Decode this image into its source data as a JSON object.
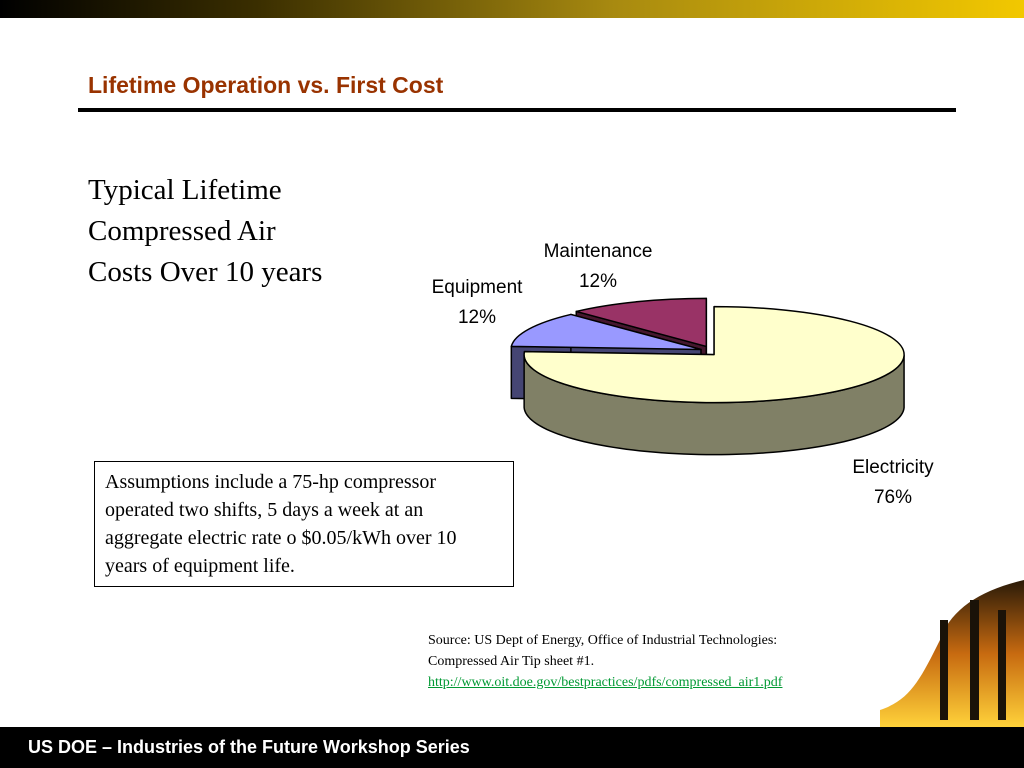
{
  "title": "Lifetime Operation vs. First Cost",
  "subtitle": [
    "Typical Lifetime",
    "Compressed Air",
    "Costs Over 10 years"
  ],
  "chart_data": {
    "type": "pie",
    "categories": [
      "Electricity",
      "Equipment",
      "Maintenance"
    ],
    "values": [
      76,
      12,
      12
    ],
    "value_labels": [
      "76%",
      "12%",
      "12%"
    ],
    "colors": [
      "#ffffcc",
      "#9999ff",
      "#993366"
    ]
  },
  "assumptions": "Assumptions include a 75-hp compressor operated two shifts, 5 days a week at an aggregate electric rate o $0.05/kWh over 10 years of equipment life.",
  "source": [
    "Source:  US Dept of Energy, Office of Industrial Technologies:",
    "Compressed Air Tip sheet #1.",
    "http://www.oit.doe.gov/bestpractices/pdfs/compressed_air1.pdf"
  ],
  "footer": "US DOE – Industries of the Future Workshop Series"
}
